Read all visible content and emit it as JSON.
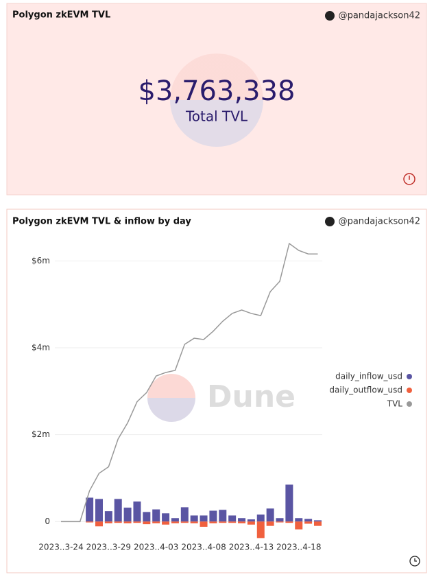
{
  "counter": {
    "title": "Polygon zkEVM TVL",
    "author": "@pandajackson42",
    "value": "$3,763,338",
    "label": "Total TVL"
  },
  "chart_author": "@pandajackson42",
  "watermark": "Dune",
  "chart_data": {
    "type": "bar",
    "title": "Polygon zkEVM TVL & inflow by day",
    "categories": [
      "2023..3-24",
      null,
      null,
      null,
      null,
      "2023..3-29",
      null,
      null,
      null,
      null,
      "2023..4-03",
      null,
      null,
      null,
      null,
      "2023..4-08",
      null,
      null,
      null,
      null,
      "2023..4-13",
      null,
      null,
      null,
      null,
      "2023..4-18",
      null,
      null
    ],
    "series": [
      {
        "name": "daily_inflow_usd",
        "color": "#5a55a3",
        "values": [
          null,
          null,
          null,
          550000,
          520000,
          240000,
          520000,
          320000,
          460000,
          220000,
          280000,
          190000,
          80000,
          330000,
          140000,
          140000,
          250000,
          270000,
          140000,
          80000,
          50000,
          160000,
          300000,
          80000,
          850000,
          80000,
          60000,
          30000
        ]
      },
      {
        "name": "daily_outflow_usd",
        "color": "#f0603e",
        "values": [
          null,
          null,
          null,
          -20000,
          -110000,
          -40000,
          -30000,
          -40000,
          -30000,
          -60000,
          -40000,
          -70000,
          -40000,
          -30000,
          -40000,
          -120000,
          -40000,
          -30000,
          -30000,
          -40000,
          -70000,
          -380000,
          -100000,
          -20000,
          -30000,
          -180000,
          -50000,
          -100000
        ]
      },
      {
        "name": "TVL",
        "color": "#999999",
        "type": "line",
        "values": [
          0,
          0,
          0,
          710000,
          1110000,
          1260000,
          1900000,
          2270000,
          2760000,
          2970000,
          3350000,
          3430000,
          3480000,
          4080000,
          4220000,
          4190000,
          4380000,
          4610000,
          4790000,
          4870000,
          4790000,
          4740000,
          5290000,
          5530000,
          6400000,
          6240000,
          6160000,
          6160000
        ]
      }
    ],
    "ylim": [
      -500000,
      6700000
    ],
    "yticks": [
      0,
      {
        "value": 2000000,
        "label": "$2m"
      },
      {
        "value": 4000000,
        "label": "$4m"
      },
      {
        "value": 6000000,
        "label": "$6m"
      }
    ],
    "grid": true,
    "legend": "right"
  }
}
